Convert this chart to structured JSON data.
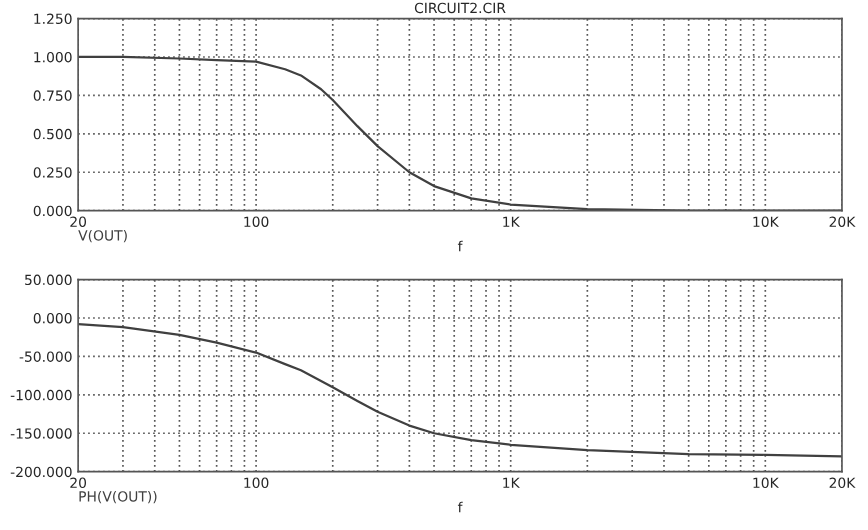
{
  "chart_data": [
    {
      "type": "line",
      "title": "CIRCUIT2.CIR",
      "xlabel": "f",
      "log": "x",
      "grid": true,
      "legend": false,
      "x": [
        20,
        30,
        50,
        70,
        100,
        130,
        150,
        180,
        200,
        250,
        300,
        400,
        500,
        700,
        1000,
        2000,
        5000,
        20000
      ],
      "series": [
        {
          "name": "V(OUT)",
          "color": "#404040",
          "values": [
            1.0,
            1.0,
            0.99,
            0.98,
            0.97,
            0.92,
            0.88,
            0.79,
            0.72,
            0.55,
            0.42,
            0.25,
            0.16,
            0.08,
            0.04,
            0.01,
            0.0,
            0.0
          ]
        }
      ],
      "xlim": [
        20,
        20000
      ],
      "xticks": [
        {
          "value": 20,
          "label": "20"
        },
        {
          "value": 30,
          "label": null
        },
        {
          "value": 40,
          "label": null
        },
        {
          "value": 50,
          "label": null
        },
        {
          "value": 60,
          "label": null
        },
        {
          "value": 70,
          "label": null
        },
        {
          "value": 80,
          "label": null
        },
        {
          "value": 90,
          "label": null
        },
        {
          "value": 100,
          "label": "100"
        },
        {
          "value": 200,
          "label": null
        },
        {
          "value": 300,
          "label": null
        },
        {
          "value": 400,
          "label": null
        },
        {
          "value": 500,
          "label": null
        },
        {
          "value": 600,
          "label": null
        },
        {
          "value": 700,
          "label": null
        },
        {
          "value": 800,
          "label": null
        },
        {
          "value": 900,
          "label": null
        },
        {
          "value": 1000,
          "label": "1K"
        },
        {
          "value": 2000,
          "label": null
        },
        {
          "value": 3000,
          "label": null
        },
        {
          "value": 4000,
          "label": null
        },
        {
          "value": 5000,
          "label": null
        },
        {
          "value": 6000,
          "label": null
        },
        {
          "value": 7000,
          "label": null
        },
        {
          "value": 8000,
          "label": null
        },
        {
          "value": 9000,
          "label": null
        },
        {
          "value": 10000,
          "label": "10K"
        },
        {
          "value": 20000,
          "label": "20K"
        }
      ],
      "ylim": [
        0,
        1.25
      ],
      "yticks": [
        {
          "value": 0,
          "label": "0.000"
        },
        {
          "value": 0.25,
          "label": "0.250"
        },
        {
          "value": 0.5,
          "label": "0.500"
        },
        {
          "value": 0.75,
          "label": "0.750"
        },
        {
          "value": 1.0,
          "label": "1.000"
        },
        {
          "value": 1.25,
          "label": "1.250"
        }
      ]
    },
    {
      "type": "line",
      "xlabel": "f",
      "log": "x",
      "grid": true,
      "legend": false,
      "x": [
        20,
        30,
        50,
        70,
        100,
        130,
        150,
        200,
        250,
        300,
        400,
        500,
        700,
        1000,
        2000,
        5000,
        10000,
        20000
      ],
      "series": [
        {
          "name": "PH(V(OUT))",
          "color": "#404040",
          "values": [
            -8,
            -12,
            -22,
            -32,
            -45,
            -60,
            -68,
            -90,
            -108,
            -122,
            -140,
            -150,
            -159,
            -165,
            -172,
            -177,
            -178,
            -180
          ]
        }
      ],
      "xlim": [
        20,
        20000
      ],
      "xticks": [
        {
          "value": 20,
          "label": "20"
        },
        {
          "value": 30,
          "label": null
        },
        {
          "value": 40,
          "label": null
        },
        {
          "value": 50,
          "label": null
        },
        {
          "value": 60,
          "label": null
        },
        {
          "value": 70,
          "label": null
        },
        {
          "value": 80,
          "label": null
        },
        {
          "value": 90,
          "label": null
        },
        {
          "value": 100,
          "label": "100"
        },
        {
          "value": 200,
          "label": null
        },
        {
          "value": 300,
          "label": null
        },
        {
          "value": 400,
          "label": null
        },
        {
          "value": 500,
          "label": null
        },
        {
          "value": 600,
          "label": null
        },
        {
          "value": 700,
          "label": null
        },
        {
          "value": 800,
          "label": null
        },
        {
          "value": 900,
          "label": null
        },
        {
          "value": 1000,
          "label": "1K"
        },
        {
          "value": 2000,
          "label": null
        },
        {
          "value": 3000,
          "label": null
        },
        {
          "value": 4000,
          "label": null
        },
        {
          "value": 5000,
          "label": null
        },
        {
          "value": 6000,
          "label": null
        },
        {
          "value": 7000,
          "label": null
        },
        {
          "value": 8000,
          "label": null
        },
        {
          "value": 9000,
          "label": null
        },
        {
          "value": 10000,
          "label": "10K"
        },
        {
          "value": 20000,
          "label": "20K"
        }
      ],
      "ylim": [
        -200,
        50
      ],
      "yticks": [
        {
          "value": -200,
          "label": "-200.000"
        },
        {
          "value": -150,
          "label": "-150.000"
        },
        {
          "value": -100,
          "label": "-100.000"
        },
        {
          "value": -50,
          "label": "-50.000"
        },
        {
          "value": 0,
          "label": "0.000"
        },
        {
          "value": 50,
          "label": "50.000"
        }
      ]
    }
  ]
}
